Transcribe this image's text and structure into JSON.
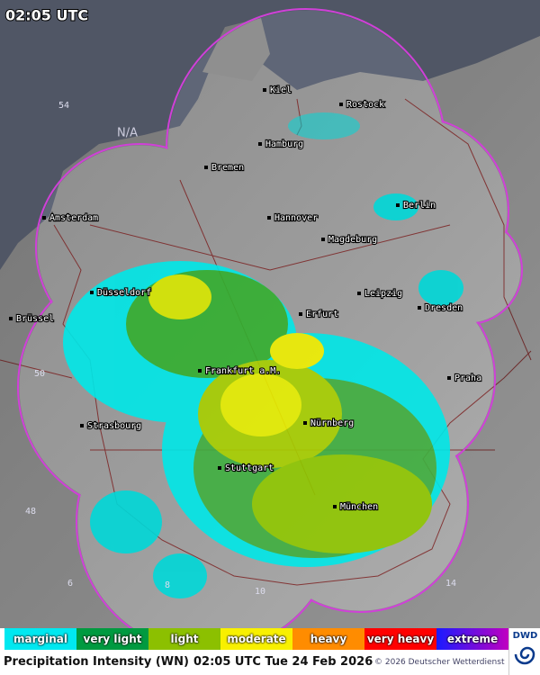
{
  "header": {
    "time": "02:05 UTC",
    "missing_label": "N/A"
  },
  "map": {
    "cities": [
      "Kiel",
      "Rostock",
      "Hamburg",
      "Bremen",
      "Berlin",
      "Hannover",
      "Magdeburg",
      "Amsterdam",
      "Düsseldorf",
      "Leipzig",
      "Erfurt",
      "Dresden",
      "Brüssel",
      "Frankfurt a.M.",
      "Praha",
      "Strasbourg",
      "Nürnberg",
      "Stuttgart",
      "München"
    ],
    "grid_labels": [
      "54",
      "50",
      "48",
      "6",
      "8",
      "10",
      "14"
    ]
  },
  "legend": {
    "items": [
      "marginal",
      "very light",
      "light",
      "moderate",
      "heavy",
      "very heavy",
      "extreme"
    ],
    "logo": "DWD"
  },
  "footer": {
    "product": "Precipitation Intensity (WN)",
    "time": "02:05 UTC Tue 24 Feb 2026",
    "copyright": "© 2026 Deutscher Wetterdienst"
  }
}
